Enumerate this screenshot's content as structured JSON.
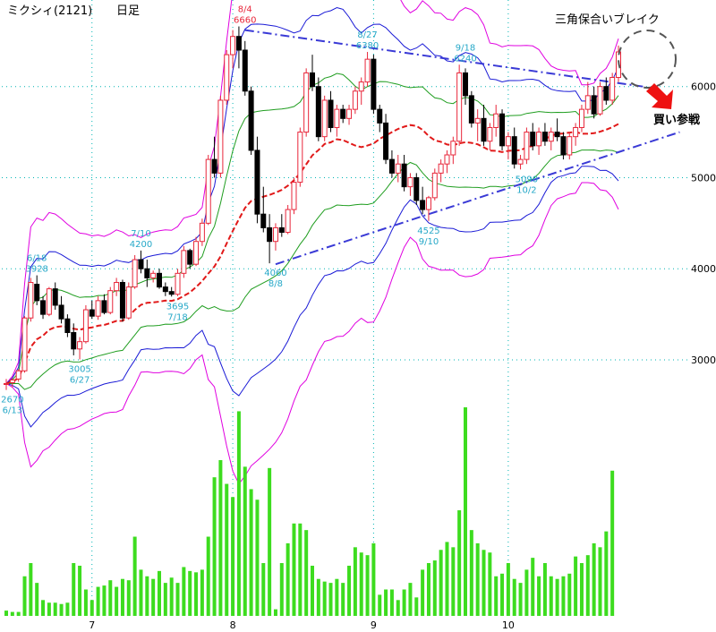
{
  "header": {
    "title": "ミクシィ(2121)",
    "period": "日足"
  },
  "annotations": {
    "pattern_label": "三角保合いブレイク",
    "action_label": "買い参戦"
  },
  "colors": {
    "up_candle": "#e8263a",
    "down_candle": "#000000",
    "ma_short": "#e11919",
    "band_inner": "#1f9d1f",
    "band_mid": "#1a1ad6",
    "band_outer": "#e000e0",
    "trendline": "#3a3ad6",
    "volume": "#3ddc1f",
    "grid": "#00b4b4",
    "price_labels": "#26a8c8"
  },
  "chart_data": {
    "type": "candlestick",
    "title": "ミクシィ(2121)",
    "period": "日足",
    "price_axis": {
      "ticks": [
        3000,
        4000,
        5000,
        6000
      ],
      "range": [
        2450,
        6950
      ]
    },
    "month_labels": [
      {
        "label": "7",
        "index": 14
      },
      {
        "label": "8",
        "index": 37
      },
      {
        "label": "9",
        "index": 60
      },
      {
        "label": "10",
        "index": 82
      }
    ],
    "price_markers": [
      {
        "label": "2670",
        "sub": "6/13",
        "price": 2670,
        "index": 1,
        "side": "below"
      },
      {
        "label": "3928",
        "sub": "6/18",
        "price": 3928,
        "index": 5,
        "side": "above"
      },
      {
        "label": "3005",
        "sub": "6/27",
        "price": 3005,
        "index": 12,
        "side": "below"
      },
      {
        "label": "4200",
        "sub": "7/10",
        "price": 4200,
        "index": 22,
        "side": "above"
      },
      {
        "label": "3695",
        "sub": "7/18",
        "price": 3695,
        "index": 28,
        "side": "below"
      },
      {
        "label": "6660",
        "sub": "8/4",
        "price": 6660,
        "index": 39,
        "side": "above",
        "highlight": true
      },
      {
        "label": "4060",
        "sub": "8/8",
        "price": 4060,
        "index": 44,
        "side": "below"
      },
      {
        "label": "6380",
        "sub": "8/27",
        "price": 6380,
        "index": 59,
        "side": "above"
      },
      {
        "label": "4525",
        "sub": "9/10",
        "price": 4525,
        "index": 69,
        "side": "below"
      },
      {
        "label": "6240",
        "sub": "9/18",
        "price": 6240,
        "index": 75,
        "side": "above"
      },
      {
        "label": "5090",
        "sub": "10/2",
        "price": 5090,
        "index": 85,
        "side": "below"
      }
    ],
    "candles": [
      [
        2730,
        2790,
        2670,
        2740
      ],
      [
        2750,
        2800,
        2700,
        2780
      ],
      [
        2790,
        2900,
        2760,
        2880
      ],
      [
        2880,
        3480,
        2860,
        3460
      ],
      [
        3460,
        3900,
        3420,
        3850
      ],
      [
        3830,
        3928,
        3600,
        3650
      ],
      [
        3650,
        3700,
        3450,
        3500
      ],
      [
        3500,
        3800,
        3480,
        3780
      ],
      [
        3780,
        3850,
        3550,
        3600
      ],
      [
        3600,
        3700,
        3400,
        3450
      ],
      [
        3450,
        3500,
        3250,
        3300
      ],
      [
        3300,
        3400,
        3050,
        3120
      ],
      [
        3120,
        3250,
        3005,
        3200
      ],
      [
        3200,
        3600,
        3180,
        3550
      ],
      [
        3550,
        3650,
        3450,
        3480
      ],
      [
        3480,
        3700,
        3440,
        3650
      ],
      [
        3650,
        3720,
        3500,
        3520
      ],
      [
        3520,
        3800,
        3500,
        3760
      ],
      [
        3760,
        3900,
        3700,
        3850
      ],
      [
        3850,
        3880,
        3420,
        3460
      ],
      [
        3460,
        3850,
        3440,
        3800
      ],
      [
        3800,
        4150,
        3780,
        4100
      ],
      [
        4100,
        4200,
        3950,
        4000
      ],
      [
        4000,
        4100,
        3800,
        3900
      ],
      [
        3900,
        3980,
        3850,
        3950
      ],
      [
        3950,
        4000,
        3780,
        3800
      ],
      [
        3800,
        3850,
        3700,
        3750
      ],
      [
        3750,
        3800,
        3695,
        3720
      ],
      [
        3720,
        4000,
        3700,
        3950
      ],
      [
        3950,
        4250,
        3900,
        4200
      ],
      [
        4200,
        4220,
        4000,
        4050
      ],
      [
        4050,
        4350,
        4030,
        4300
      ],
      [
        4300,
        4550,
        4250,
        4500
      ],
      [
        4500,
        5250,
        4480,
        5200
      ],
      [
        5200,
        5450,
        5000,
        5050
      ],
      [
        5050,
        5900,
        5000,
        5850
      ],
      [
        5850,
        6400,
        5800,
        6350
      ],
      [
        6350,
        6620,
        6200,
        6550
      ],
      [
        6550,
        6660,
        6200,
        6400
      ],
      [
        6400,
        6500,
        5900,
        5950
      ],
      [
        5950,
        6000,
        5250,
        5300
      ],
      [
        5300,
        5450,
        4500,
        4600
      ],
      [
        4600,
        4900,
        4400,
        4450
      ],
      [
        4450,
        4600,
        4060,
        4300
      ],
      [
        4300,
        4500,
        4200,
        4450
      ],
      [
        4450,
        4600,
        4350,
        4400
      ],
      [
        4400,
        4700,
        4380,
        4650
      ],
      [
        4650,
        5000,
        4600,
        4950
      ],
      [
        4950,
        5550,
        4900,
        5500
      ],
      [
        5500,
        6200,
        5450,
        6150
      ],
      [
        6150,
        6350,
        5950,
        6000
      ],
      [
        6000,
        6100,
        5400,
        5450
      ],
      [
        5450,
        5900,
        5400,
        5850
      ],
      [
        5850,
        5950,
        5500,
        5550
      ],
      [
        5550,
        5800,
        5450,
        5750
      ],
      [
        5750,
        5800,
        5600,
        5650
      ],
      [
        5650,
        5800,
        5580,
        5750
      ],
      [
        5750,
        6000,
        5700,
        5950
      ],
      [
        5950,
        6100,
        5800,
        6050
      ],
      [
        6050,
        6380,
        6000,
        6300
      ],
      [
        6300,
        6350,
        5700,
        5750
      ],
      [
        5750,
        5800,
        5500,
        5600
      ],
      [
        5600,
        5700,
        5150,
        5200
      ],
      [
        5200,
        5300,
        5000,
        5050
      ],
      [
        5050,
        5250,
        4950,
        5150
      ],
      [
        5150,
        5250,
        4850,
        4900
      ],
      [
        4900,
        5050,
        4800,
        5000
      ],
      [
        5000,
        5050,
        4700,
        4750
      ],
      [
        4750,
        4900,
        4600,
        4650
      ],
      [
        4650,
        4800,
        4525,
        4780
      ],
      [
        4780,
        5100,
        4750,
        5050
      ],
      [
        5050,
        5200,
        4950,
        5150
      ],
      [
        5150,
        5300,
        5050,
        5250
      ],
      [
        5250,
        5450,
        5150,
        5400
      ],
      [
        5400,
        6240,
        5350,
        6150
      ],
      [
        6150,
        6200,
        5800,
        5900
      ],
      [
        5900,
        5950,
        5550,
        5600
      ],
      [
        5600,
        5750,
        5400,
        5650
      ],
      [
        5650,
        5800,
        5350,
        5400
      ],
      [
        5400,
        5600,
        5300,
        5550
      ],
      [
        5550,
        5800,
        5450,
        5700
      ],
      [
        5700,
        5750,
        5300,
        5350
      ],
      [
        5350,
        5500,
        5200,
        5450
      ],
      [
        5450,
        5550,
        5100,
        5150
      ],
      [
        5150,
        5250,
        5090,
        5200
      ],
      [
        5200,
        5550,
        5150,
        5500
      ],
      [
        5500,
        5600,
        5300,
        5350
      ],
      [
        5350,
        5550,
        5250,
        5500
      ],
      [
        5500,
        5600,
        5350,
        5400
      ],
      [
        5400,
        5550,
        5300,
        5500
      ],
      [
        5500,
        5650,
        5400,
        5450
      ],
      [
        5450,
        5500,
        5200,
        5250
      ],
      [
        5250,
        5500,
        5200,
        5450
      ],
      [
        5450,
        5600,
        5350,
        5550
      ],
      [
        5550,
        5800,
        5500,
        5750
      ],
      [
        5750,
        6050,
        5700,
        5900
      ],
      [
        5900,
        6000,
        5650,
        5700
      ],
      [
        5700,
        6050,
        5680,
        6000
      ],
      [
        6000,
        6100,
        5800,
        5850
      ],
      [
        5850,
        6150,
        5800,
        6100
      ],
      [
        6100,
        6450,
        6050,
        6380
      ]
    ],
    "volume": [
      4,
      3,
      3,
      30,
      40,
      25,
      12,
      10,
      10,
      9,
      10,
      40,
      38,
      20,
      12,
      22,
      23,
      27,
      22,
      28,
      27,
      60,
      35,
      30,
      28,
      34,
      25,
      29,
      25,
      37,
      34,
      33,
      35,
      60,
      105,
      118,
      100,
      90,
      155,
      113,
      96,
      88,
      40,
      112,
      5,
      40,
      55,
      70,
      70,
      65,
      38,
      28,
      26,
      25,
      28,
      25,
      38,
      52,
      48,
      46,
      55,
      16,
      20,
      20,
      12,
      20,
      25,
      14,
      35,
      40,
      42,
      50,
      56,
      52,
      80,
      158,
      65,
      55,
      50,
      48,
      30,
      32,
      40,
      28,
      25,
      35,
      44,
      30,
      40,
      30,
      28,
      30,
      32,
      45,
      40,
      46,
      55,
      52,
      64,
      110
    ],
    "overlays": [
      {
        "name": "ma",
        "type": "line"
      },
      {
        "name": "band_inner_upper"
      },
      {
        "name": "band_inner_lower"
      },
      {
        "name": "band_mid_upper"
      },
      {
        "name": "band_mid_lower"
      },
      {
        "name": "band_outer_upper"
      },
      {
        "name": "band_outer_lower"
      }
    ],
    "trendlines": [
      {
        "from": {
          "index": 39,
          "price": 6620
        },
        "to": {
          "index": 104,
          "price": 6000
        }
      },
      {
        "from": {
          "index": 44,
          "price": 4050
        },
        "to": {
          "index": 110,
          "price": 5500
        }
      }
    ]
  }
}
